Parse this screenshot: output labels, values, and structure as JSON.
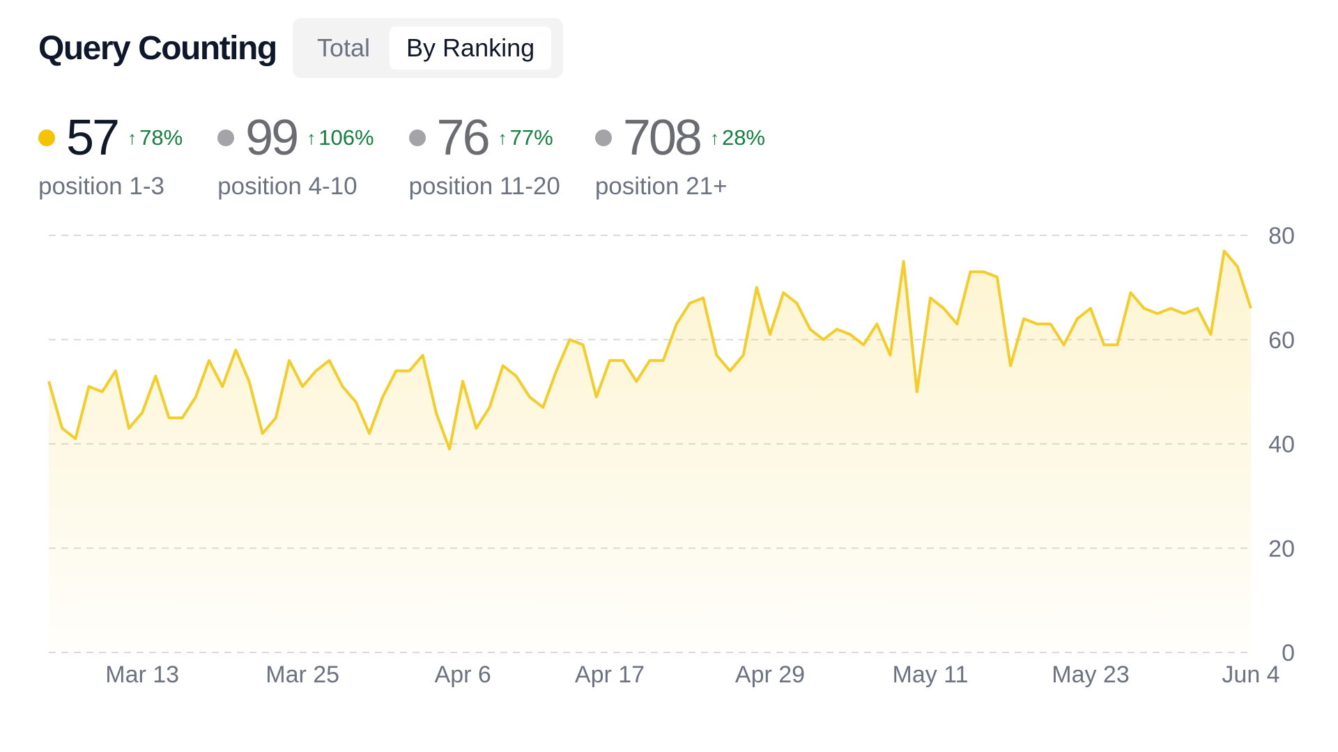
{
  "header": {
    "title": "Query Counting",
    "toggle": [
      {
        "label": "Total",
        "active": false
      },
      {
        "label": "By Ranking",
        "active": true
      }
    ]
  },
  "stats": [
    {
      "value": "57",
      "change": "78%",
      "label": "position 1-3",
      "dot_color": "#f5c400",
      "value_color": "#111827"
    },
    {
      "value": "99",
      "change": "106%",
      "label": "position 4-10",
      "dot_color": "#a3a3a8",
      "value_color": "#6b6b72"
    },
    {
      "value": "76",
      "change": "77%",
      "label": "position 11-20",
      "dot_color": "#a3a3a8",
      "value_color": "#6b6b72"
    },
    {
      "value": "708",
      "change": "28%",
      "label": "position 21+",
      "dot_color": "#a3a3a8",
      "value_color": "#6b6b72"
    }
  ],
  "chart_data": {
    "type": "area",
    "series": [
      {
        "name": "position 1-3",
        "color": "#f5cd2a",
        "values": [
          52,
          43,
          41,
          51,
          50,
          54,
          43,
          46,
          53,
          45,
          45,
          49,
          56,
          51,
          58,
          52,
          42,
          45,
          56,
          51,
          54,
          56,
          51,
          48,
          42,
          49,
          54,
          54,
          57,
          46,
          39,
          52,
          43,
          47,
          55,
          53,
          49,
          47,
          54,
          60,
          59,
          49,
          56,
          56,
          52,
          56,
          56,
          63,
          67,
          68,
          57,
          54,
          57,
          70,
          61,
          69,
          67,
          62,
          60,
          62,
          61,
          59,
          63,
          57,
          75,
          50,
          68,
          66,
          63,
          73,
          73,
          72,
          55,
          64,
          63,
          63,
          59,
          64,
          66,
          59,
          59,
          69,
          66,
          65,
          66,
          65,
          66,
          61,
          77,
          74,
          66
        ]
      }
    ],
    "x_tick_labels": [
      "Mar 13",
      "Mar 25",
      "Apr 6",
      "Apr 17",
      "Apr 29",
      "May 11",
      "May 23",
      "Jun 4"
    ],
    "x_tick_index": [
      7,
      19,
      31,
      42,
      54,
      66,
      78,
      90
    ],
    "y_ticks": [
      0,
      20,
      40,
      60,
      80
    ],
    "ylim": [
      0,
      80
    ],
    "grid": true
  }
}
